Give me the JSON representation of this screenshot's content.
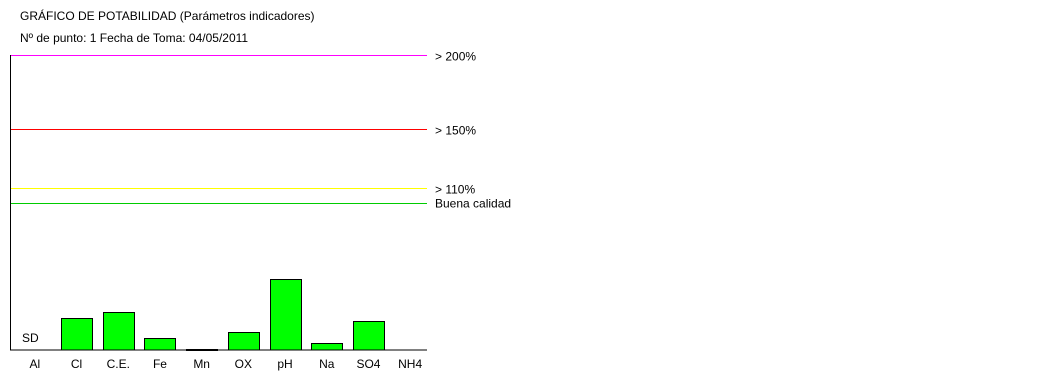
{
  "header": {
    "title": "GRÁFICO DE POTABILIDAD (Parámetros indicadores)",
    "subtitle": "Nº de punto: 1 Fecha de Toma: 04/05/2011"
  },
  "chart_data": {
    "type": "bar",
    "title": "GRÁFICO DE POTABILIDAD (Parámetros indicadores)",
    "subtitle": "Nº de punto: 1 Fecha de Toma: 04/05/2011",
    "categories": [
      "Al",
      "Cl",
      "C.E.",
      "Fe",
      "Mn",
      "OX",
      "pH",
      "Na",
      "SO4",
      "NH4"
    ],
    "values": [
      null,
      22,
      26,
      8,
      1,
      12,
      48,
      5,
      20,
      null
    ],
    "value_labels": [
      "SD",
      "",
      "",
      "",
      "",
      "",
      "",
      "",
      "",
      ""
    ],
    "unit": "%",
    "ylim": [
      0,
      200
    ],
    "grid": false,
    "bar_color": "#00ff00",
    "reference_lines": [
      {
        "value": 200,
        "label": "> 200%",
        "color": "#ff00ff"
      },
      {
        "value": 150,
        "label": "> 150%",
        "color": "#ff0000"
      },
      {
        "value": 110,
        "label": "> 110%",
        "color": "#ffff00"
      },
      {
        "value": 100,
        "label": "Buena calidad",
        "color": "#00cc00"
      }
    ]
  }
}
